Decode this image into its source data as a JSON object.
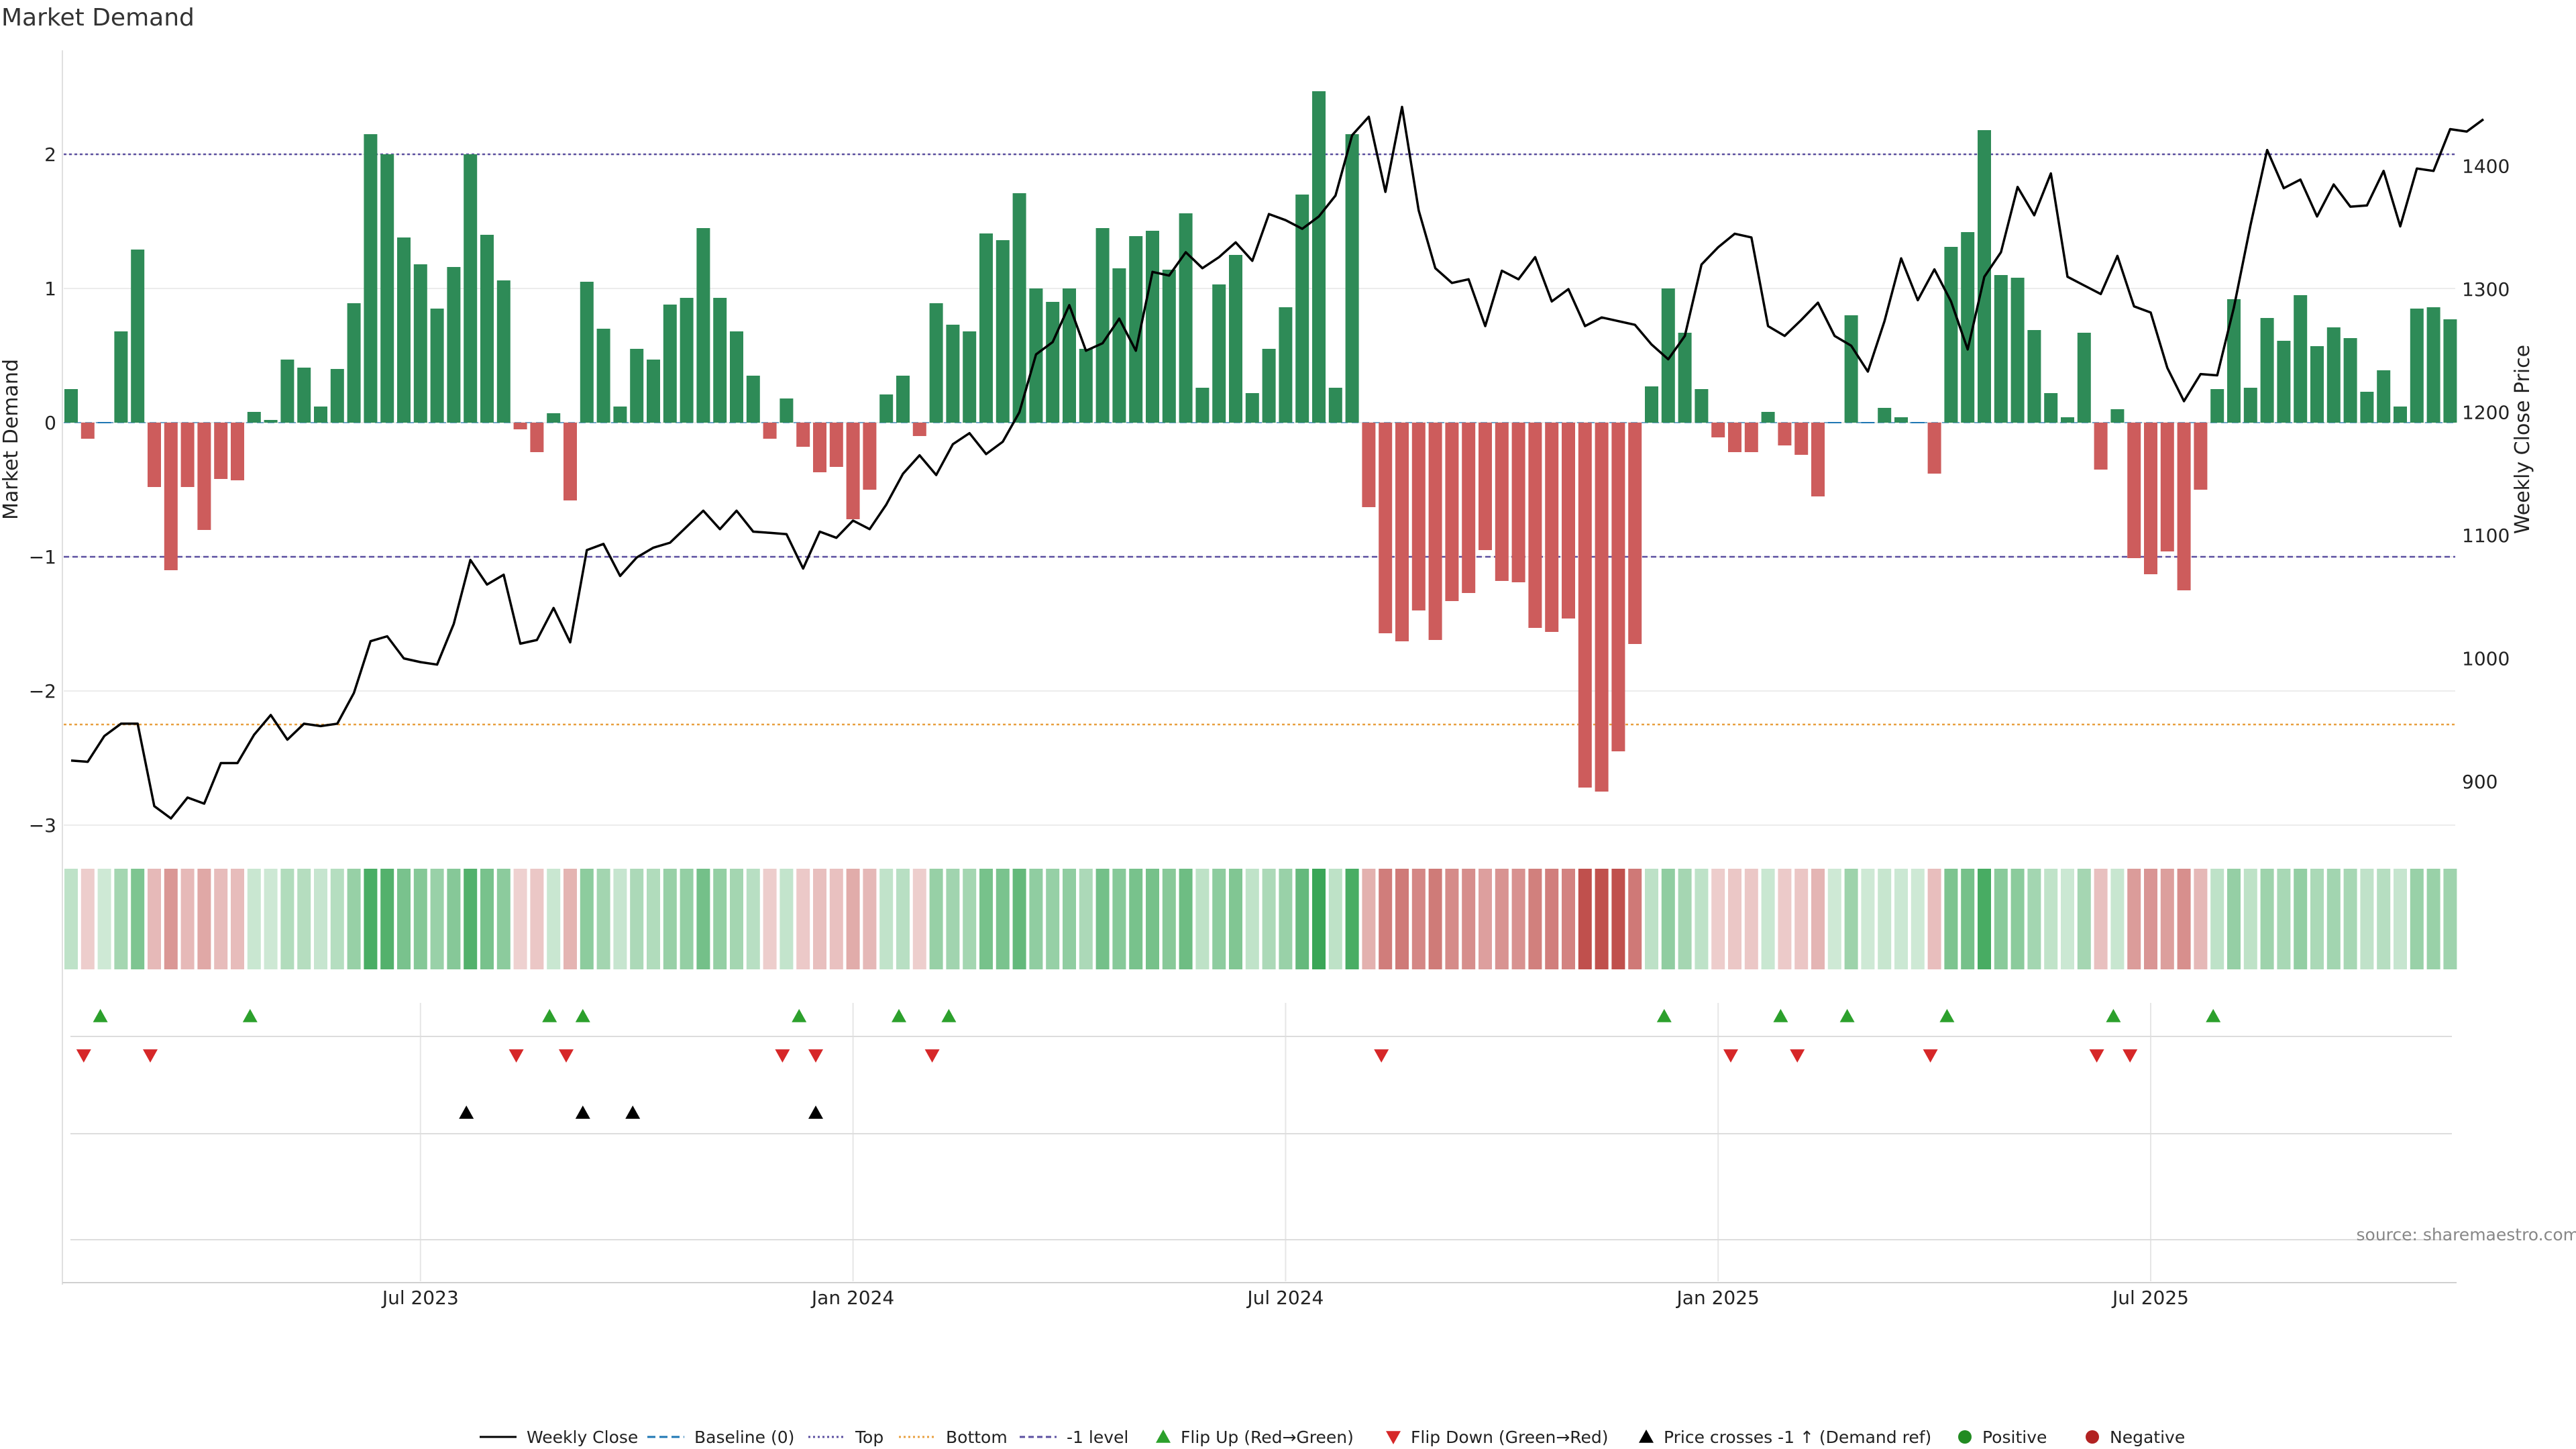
{
  "chart_data": {
    "type": "bar",
    "title": "Market Demand",
    "ylabel_left": "Market Demand",
    "ylabel_right": "Weekly Close Price",
    "ylim_left": [
      -3.3,
      2.7
    ],
    "ylim_right": [
      850,
      1470
    ],
    "yticks_left": [
      -3,
      -2,
      -1,
      0,
      1,
      2
    ],
    "ytick_labels_left": [
      "−3",
      "−2",
      "−1",
      "0",
      "1",
      "2"
    ],
    "yticks_right": [
      900,
      1000,
      1100,
      1200,
      1300,
      1400
    ],
    "ytick_labels_right": [
      "900",
      "1000",
      "1100",
      "1200",
      "1300",
      "1400"
    ],
    "x_tick_labels": [
      {
        "week": 21,
        "label": "Jul 2023"
      },
      {
        "week": 47,
        "label": "Jan 2024"
      },
      {
        "week": 73,
        "label": "Jul 2024"
      },
      {
        "week": 99,
        "label": "Jan 2025"
      },
      {
        "week": 125,
        "label": "Jul 2025"
      }
    ],
    "reference_lines": {
      "top": 2.0,
      "bottom": -2.25,
      "minus_one": -1.0,
      "baseline": 0
    },
    "demand": [
      0.25,
      -0.12,
      0,
      0.68,
      1.29,
      -0.48,
      -1.1,
      -0.48,
      -0.8,
      -0.42,
      -0.43,
      0.08,
      0.02,
      0.47,
      0.41,
      0.12,
      0.4,
      0.89,
      2.15,
      2.0,
      1.38,
      1.18,
      0.85,
      1.16,
      2.0,
      1.4,
      1.06,
      -0.05,
      -0.22,
      0.07,
      -0.58,
      1.05,
      0.7,
      0.12,
      0.55,
      0.47,
      0.88,
      0.93,
      1.45,
      0.93,
      0.68,
      0.35,
      -0.12,
      0.18,
      -0.18,
      -0.37,
      -0.33,
      -0.72,
      -0.5,
      0.21,
      0.35,
      -0.1,
      0.89,
      0.73,
      0.68,
      1.41,
      1.36,
      1.71,
      1.0,
      0.9,
      1.0,
      0.55,
      1.45,
      1.15,
      1.39,
      1.43,
      1.14,
      1.56,
      0.26,
      1.03,
      1.25,
      0.22,
      0.55,
      0.86,
      1.7,
      2.47,
      0.26,
      2.15,
      -0.63,
      -1.57,
      -1.63,
      -1.4,
      -1.62,
      -1.33,
      -1.27,
      -0.95,
      -1.18,
      -1.19,
      -1.53,
      -1.56,
      -1.46,
      -2.72,
      -2.75,
      -2.45,
      -1.65,
      0.27,
      1.0,
      0.67,
      0.25,
      -0.11,
      -0.22,
      -0.22,
      0.08,
      -0.17,
      -0.24,
      -0.55,
      0,
      0.8,
      0,
      0.11,
      0.04,
      0,
      -0.38,
      1.31,
      1.42,
      2.18,
      1.1,
      1.08,
      0.69,
      0.22,
      0.04,
      0.67,
      -0.35,
      0.1,
      -1.01,
      -1.13,
      -0.96,
      -1.25,
      -0.5,
      0.25,
      0.92,
      0.26,
      0.78,
      0.61,
      0.95,
      0.57,
      0.71,
      0.63,
      0.23,
      0.39,
      0.12,
      0.85,
      0.86,
      0.77
    ],
    "weekly_close": [
      917,
      916,
      937,
      947,
      947,
      880,
      870,
      887,
      882,
      915,
      915,
      938,
      954,
      934,
      947,
      945,
      947,
      972,
      1014,
      1018,
      1000,
      997,
      995,
      1028,
      1080,
      1060,
      1068,
      1012,
      1015,
      1041,
      1013,
      1088,
      1093,
      1067,
      1082,
      1090,
      1094,
      1107,
      1120,
      1105,
      1120,
      1103,
      1102,
      1101,
      1073,
      1103,
      1098,
      1112,
      1105,
      1125,
      1150,
      1165,
      1149,
      1174,
      1183,
      1166,
      1176,
      1200,
      1247,
      1257,
      1287,
      1250,
      1256,
      1276,
      1250,
      1314,
      1311,
      1330,
      1317,
      1326,
      1338,
      1323,
      1361,
      1356,
      1349,
      1359,
      1376,
      1425,
      1440,
      1379,
      1448,
      1364,
      1317,
      1305,
      1308,
      1270,
      1315,
      1308,
      1326,
      1290,
      1300,
      1270,
      1277,
      1274,
      1271,
      1255,
      1243,
      1262,
      1320,
      1334,
      1345,
      1342,
      1270,
      1262,
      1275,
      1289,
      1262,
      1254,
      1233,
      1274,
      1325,
      1291,
      1316,
      1290,
      1251,
      1310,
      1330,
      1383,
      1360,
      1394,
      1310,
      1303,
      1296,
      1327,
      1286,
      1281,
      1236,
      1209,
      1231,
      1230,
      1285,
      1352,
      1413,
      1382,
      1389,
      1359,
      1385,
      1367,
      1368,
      1396,
      1351,
      1398,
      1396,
      1430,
      1428,
      1438
    ],
    "flip_up_weeks": [
      2,
      11,
      29,
      31,
      44,
      50,
      53,
      96,
      103,
      107,
      113,
      123,
      129
    ],
    "flip_down_weeks": [
      1,
      5,
      27,
      30,
      43,
      45,
      52,
      79,
      100,
      104,
      112,
      122,
      124
    ],
    "price_cross_weeks": [
      24,
      31,
      34,
      45
    ],
    "colors": {
      "positive_bar": "#2e8b57",
      "negative_bar": "#cd5c5c",
      "price_line": "#000000",
      "top_line": "#5b4fa0",
      "bottom_line": "#e8a040",
      "minus_one_line": "#5b4fa0",
      "baseline_line": "#1f77b4",
      "flip_up": "#2ca02c",
      "flip_down": "#d62728",
      "price_cross": "#000000",
      "positive_dot": "#228b22",
      "negative_dot": "#b22222"
    },
    "legend": [
      {
        "label": "Weekly Close",
        "icon": "solid-line"
      },
      {
        "label": "Baseline (0)",
        "icon": "dashed-line"
      },
      {
        "label": "Top",
        "icon": "dotted-line"
      },
      {
        "label": "Bottom",
        "icon": "dotted-line"
      },
      {
        "label": "-1 level",
        "icon": "dashed-line"
      },
      {
        "label": "Flip Up (Red→Green)",
        "icon": "up-triangle"
      },
      {
        "label": "Flip Down (Green→Red)",
        "icon": "down-triangle"
      },
      {
        "label": "Price crosses -1 ↑ (Demand ref)",
        "icon": "up-triangle"
      },
      {
        "label": "Positive",
        "icon": "dot"
      },
      {
        "label": "Negative",
        "icon": "dot"
      }
    ],
    "source": "source: sharemaestro.com"
  }
}
